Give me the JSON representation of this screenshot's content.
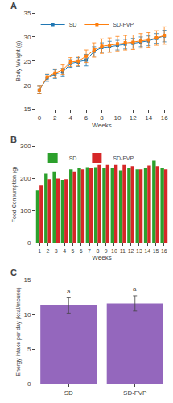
{
  "chart_data": [
    {
      "type": "line",
      "title": "A",
      "x": [
        0,
        1,
        2,
        3,
        4,
        5,
        6,
        7,
        8,
        9,
        10,
        11,
        12,
        13,
        14,
        15,
        16
      ],
      "series": [
        {
          "name": "SD",
          "values": [
            19.0,
            21.5,
            22.3,
            22.7,
            24.5,
            24.8,
            25.2,
            27.0,
            27.8,
            28.0,
            28.3,
            28.5,
            28.7,
            29.0,
            29.2,
            29.7,
            30.2
          ],
          "errors": [
            0.8,
            0.7,
            0.9,
            0.8,
            0.8,
            0.9,
            1.2,
            1.0,
            1.0,
            1.1,
            1.0,
            1.0,
            1.0,
            1.0,
            1.0,
            1.0,
            1.2
          ]
        },
        {
          "name": "SD-FVP",
          "values": [
            19.0,
            21.7,
            22.5,
            23.2,
            24.8,
            25.0,
            26.0,
            27.3,
            28.1,
            28.3,
            28.6,
            28.8,
            28.9,
            29.2,
            29.4,
            29.8,
            30.3
          ],
          "errors": [
            0.8,
            0.8,
            0.9,
            1.0,
            0.9,
            1.0,
            1.3,
            1.5,
            1.5,
            1.5,
            1.5,
            1.5,
            1.5,
            1.5,
            1.5,
            1.5,
            1.8
          ]
        }
      ],
      "xlabel": "Weeks",
      "ylabel": "Body Weight (g)",
      "xlim": [
        -0.5,
        16.5
      ],
      "xticks": [
        0,
        2,
        4,
        6,
        8,
        10,
        12,
        14,
        16
      ],
      "ylim": [
        15,
        35
      ],
      "yticks": [
        15,
        20,
        25,
        30,
        35
      ],
      "marker": "square",
      "legend": "upper left",
      "grid": false
    },
    {
      "type": "bar",
      "title": "B",
      "categories": [
        "1",
        "2",
        "3",
        "4",
        "5",
        "6",
        "7",
        "8",
        "9",
        "10",
        "11",
        "12",
        "13",
        "14",
        "15",
        "16"
      ],
      "series": [
        {
          "name": "SD",
          "values": [
            163,
            215,
            222,
            196,
            228,
            232,
            235,
            235,
            232,
            233,
            225,
            233,
            228,
            232,
            255,
            232
          ]
        },
        {
          "name": "SD-FVP",
          "values": [
            178,
            198,
            200,
            198,
            222,
            228,
            232,
            242,
            242,
            242,
            242,
            238,
            228,
            240,
            238,
            228
          ]
        }
      ],
      "xlabel": "Weeks",
      "ylabel": "Food Consumption (g)",
      "ylim": [
        0,
        300
      ],
      "yticks": [
        0,
        100,
        200,
        300
      ],
      "legend": "upper left",
      "grid": false
    },
    {
      "type": "bar",
      "title": "C",
      "categories": [
        "SD",
        "SD-FVP"
      ],
      "values": [
        11.3,
        11.6
      ],
      "errors": [
        1.1,
        1.1
      ],
      "annotations": [
        "a",
        "a"
      ],
      "ylabel": "Energy intake per day (kcal/mouse)",
      "ylim": [
        0,
        15
      ],
      "yticks": [
        0,
        5,
        10,
        15
      ],
      "grid": false
    }
  ]
}
